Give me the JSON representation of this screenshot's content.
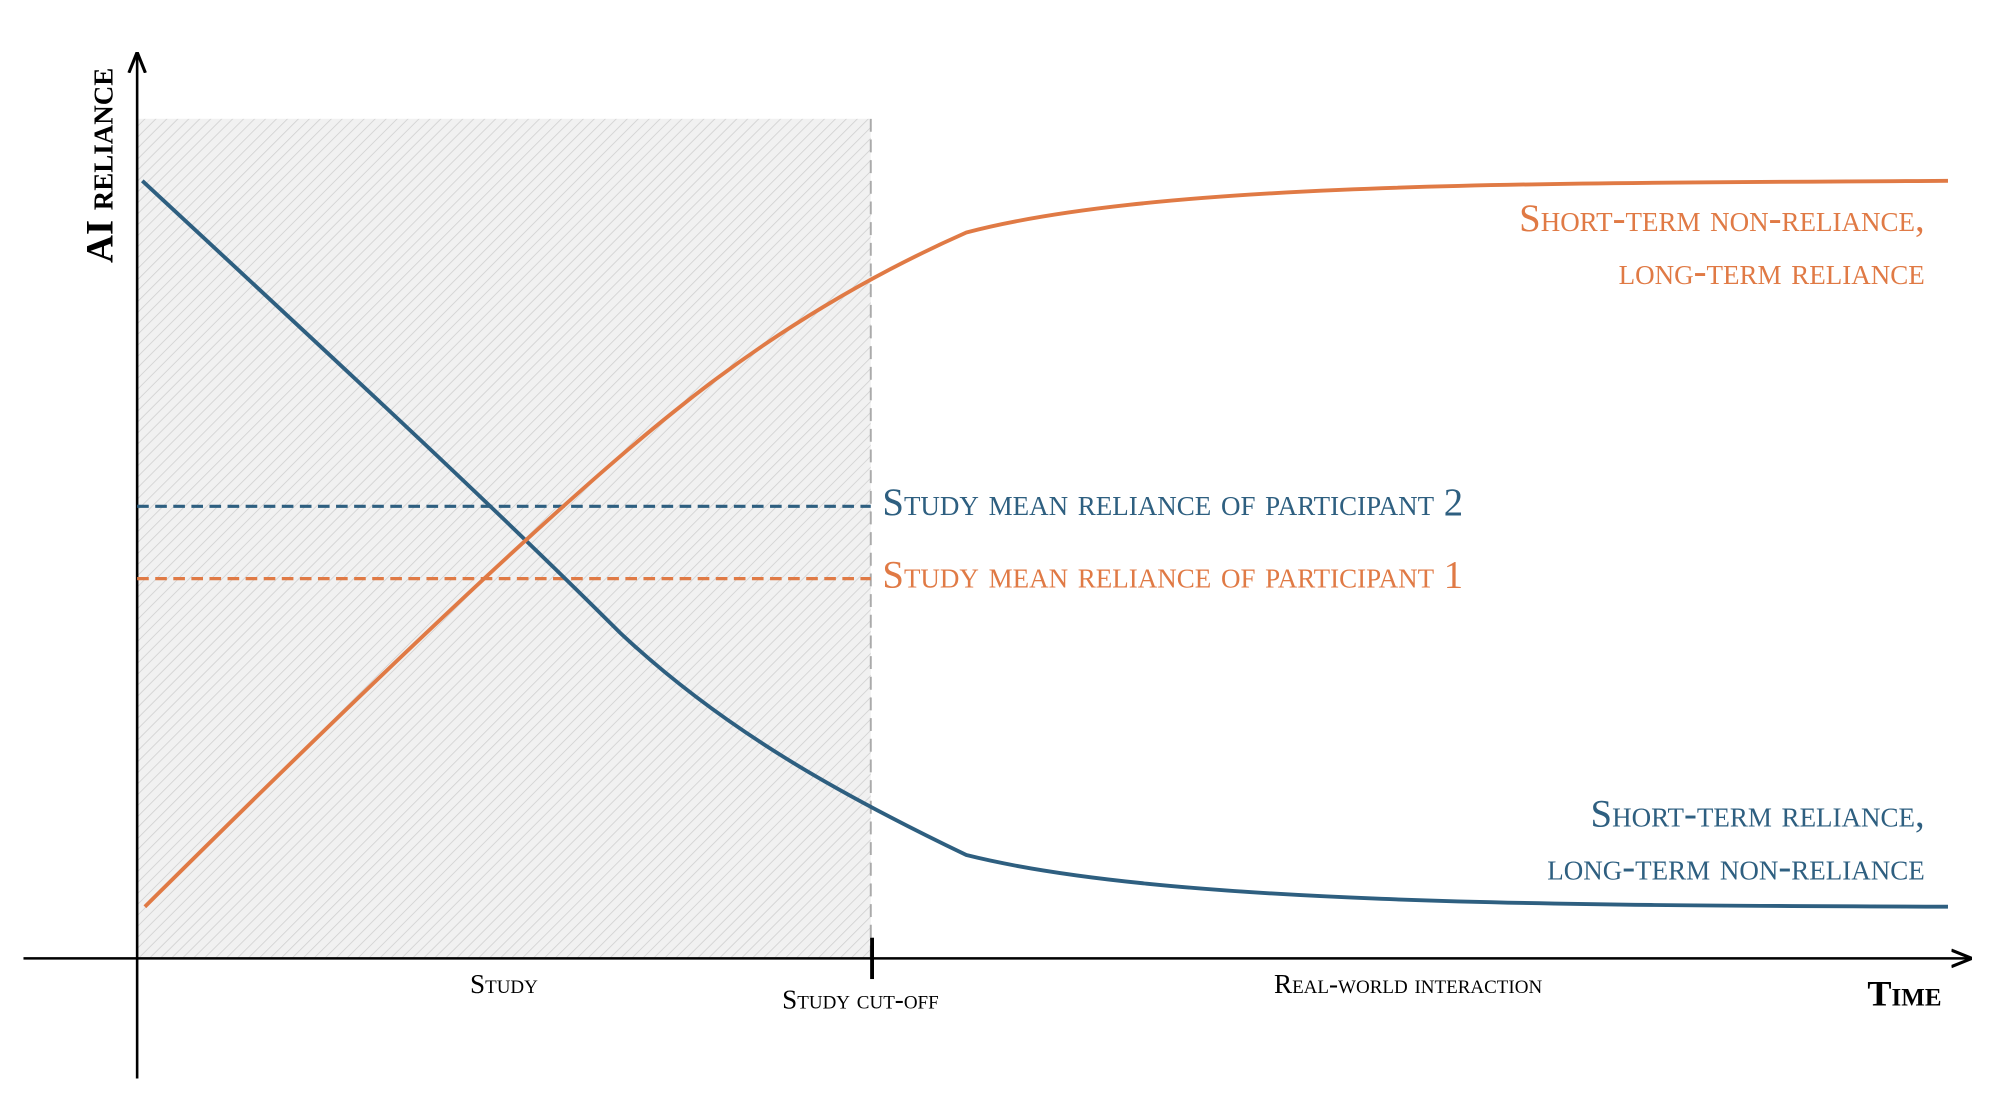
{
  "axes": {
    "y_label": "AI reliance",
    "x_label": "Time"
  },
  "x_annotations": {
    "study": "Study",
    "cutoff": "Study cut-off",
    "real_world": "Real-world interaction"
  },
  "mean_lines": {
    "participant_2": "Study mean reliance of participant 2",
    "participant_1": "Study mean reliance of participant 1"
  },
  "curves": {
    "orange": {
      "line1": "Short-term non-reliance,",
      "line2": "long-term reliance"
    },
    "blue": {
      "line1": "Short-term reliance,",
      "line2": "long-term non-reliance"
    }
  }
}
